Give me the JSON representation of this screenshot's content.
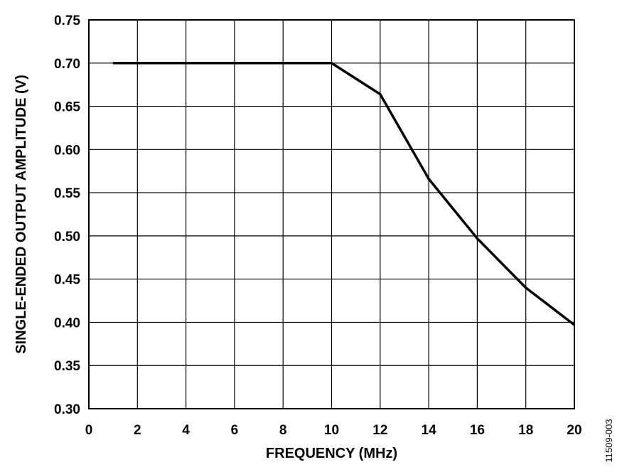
{
  "chart_data": {
    "type": "line",
    "title": "",
    "xlabel": "FREQUENCY (MHz)",
    "ylabel": "SINGLE-ENDED OUTPUT AMPLITUDE (V)",
    "xlim": [
      0,
      20
    ],
    "ylim": [
      0.3,
      0.75
    ],
    "xticks": [
      "0",
      "2",
      "4",
      "6",
      "8",
      "10",
      "12",
      "14",
      "16",
      "18",
      "20"
    ],
    "yticks": [
      "0.30",
      "0.35",
      "0.40",
      "0.45",
      "0.50",
      "0.55",
      "0.60",
      "0.65",
      "0.70",
      "0.75"
    ],
    "grid": true,
    "legend": "none",
    "series": [
      {
        "color": "#000000",
        "x": [
          1,
          10,
          12,
          14,
          16,
          18,
          20
        ],
        "y": [
          0.7,
          0.7,
          0.664,
          0.566,
          0.497,
          0.44,
          0.397
        ]
      }
    ]
  },
  "figure_id": "11509-003"
}
